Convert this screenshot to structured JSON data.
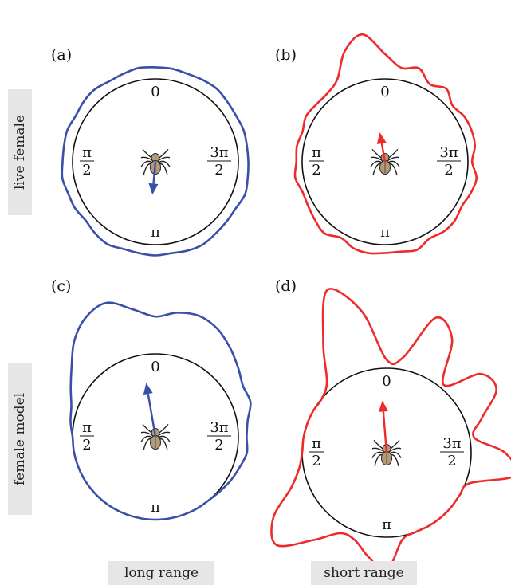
{
  "rows": [
    {
      "label": "live female"
    },
    {
      "label": "female model"
    }
  ],
  "columns": [
    {
      "label": "long range"
    },
    {
      "label": "short range"
    }
  ],
  "colors": {
    "long_range": "#3a4fa8",
    "short_range": "#ee2a2a",
    "circle": "#111111",
    "spider_body": "#b39a78"
  },
  "chart_data": [
    {
      "panel": "(a)",
      "type": "polar",
      "row": "live female",
      "column": "long range",
      "tick_labels": {
        "top": "0",
        "bottom": "π",
        "left_num": "π",
        "left_den": "2",
        "right_num": "3π",
        "right_den": "2"
      },
      "mean_direction_rad": 3.05,
      "mean_vector_length": 0.4,
      "curve_radius_relative": [
        1.14,
        1.15,
        1.13,
        1.12,
        1.14,
        1.13,
        1.11,
        1.13,
        1.12,
        1.12,
        1.14,
        1.12,
        1.12,
        1.1,
        1.13,
        1.15,
        1.12,
        1.12,
        1.13,
        1.12,
        1.14,
        1.15,
        1.13,
        1.12,
        1.12,
        1.15,
        1.13,
        1.12,
        1.12,
        1.13,
        1.12,
        1.13,
        1.15,
        1.14,
        1.13,
        1.14
      ]
    },
    {
      "panel": "(b)",
      "type": "polar",
      "row": "live female",
      "column": "short range",
      "tick_labels": {
        "top": "0",
        "bottom": "π",
        "left_num": "π",
        "left_den": "2",
        "right_num": "3π",
        "right_den": "2"
      },
      "mean_direction_rad": 0.18,
      "mean_vector_length": 0.36,
      "curve_radius_relative": [
        1.3,
        1.56,
        1.42,
        1.15,
        1.08,
        1.08,
        1.1,
        1.06,
        1.08,
        1.07,
        1.1,
        1.06,
        1.07,
        1.1,
        1.13,
        1.06,
        1.11,
        1.12,
        1.1,
        1.1,
        1.13,
        1.07,
        1.1,
        1.1,
        1.07,
        1.1,
        1.12,
        1.05,
        1.1,
        1.11,
        1.1,
        1.06,
        1.15,
        1.08,
        1.2,
        1.15
      ]
    },
    {
      "panel": "(c)",
      "type": "polar",
      "row": "female model",
      "column": "long range",
      "tick_labels": {
        "top": "0",
        "bottom": "π",
        "left_num": "π",
        "left_den": "2",
        "right_num": "3π",
        "right_den": "2"
      },
      "mean_direction_rad": 0.17,
      "mean_vector_length": 0.66,
      "curve_radius_relative": [
        1.45,
        1.56,
        1.72,
        1.67,
        1.52,
        1.32,
        1.18,
        1.08,
        1.04,
        1.0,
        1.0,
        1.0,
        1.0,
        1.0,
        1.0,
        1.0,
        1.0,
        1.0,
        1.0,
        1.0,
        1.0,
        1.0,
        1.0,
        1.02,
        1.05,
        1.08,
        1.12,
        1.1,
        1.13,
        1.22,
        1.22,
        1.3,
        1.4,
        1.5,
        1.55,
        1.52
      ]
    },
    {
      "panel": "(d)",
      "type": "polar",
      "row": "female model",
      "column": "short range",
      "tick_labels": {
        "top": "0",
        "bottom": "π",
        "left_num": "π",
        "left_den": "2",
        "right_num": "3π",
        "right_den": "2"
      },
      "mean_direction_rad": 0.08,
      "mean_vector_length": 0.62,
      "curve_radius_relative": [
        1.1,
        1.7,
        2.05,
        1.5,
        1.1,
        1.0,
        1.0,
        1.0,
        1.0,
        1.0,
        1.05,
        1.2,
        1.55,
        1.7,
        1.35,
        1.1,
        1.1,
        1.25,
        1.4,
        1.05,
        1.0,
        1.0,
        1.0,
        1.0,
        1.0,
        1.05,
        1.55,
        1.4,
        1.05,
        1.2,
        1.5,
        1.45,
        1.05,
        1.55,
        1.7,
        1.15
      ]
    }
  ]
}
